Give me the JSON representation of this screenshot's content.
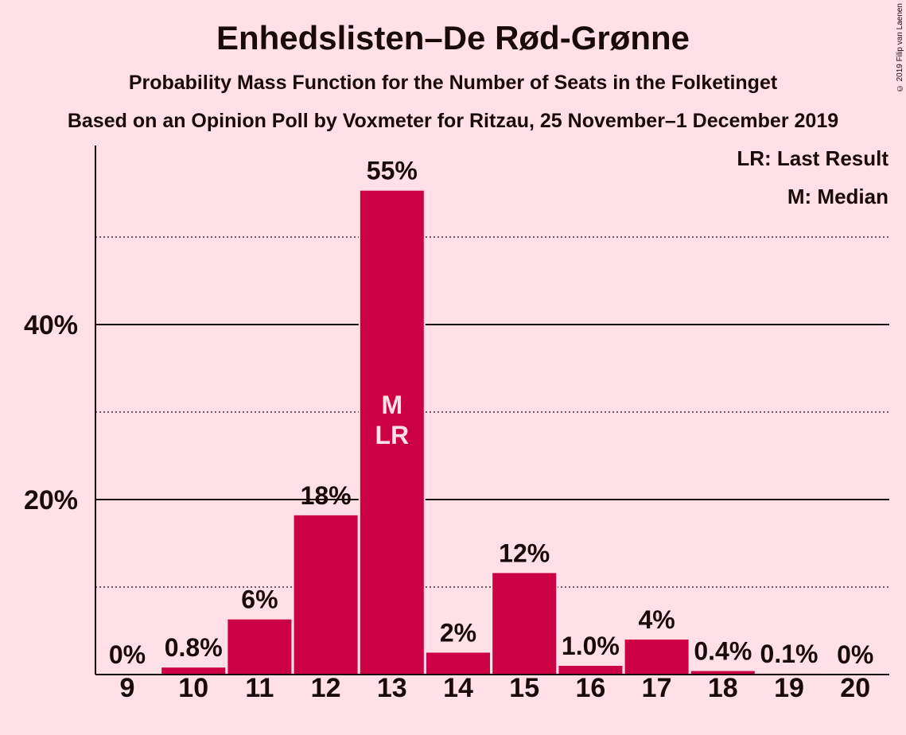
{
  "header": {
    "title": "Enhedslisten–De Rød-Grønne",
    "subtitle": "Probability Mass Function for the Number of Seats in the Folketinget",
    "source": "Based on an Opinion Poll by Voxmeter for Ritzau, 25 November–1 December 2019",
    "copyright": "© 2019 Filip van Laenen"
  },
  "legend": {
    "lr": "LR: Last Result",
    "m": "M: Median"
  },
  "colors": {
    "background": "#ffe0e6",
    "bar": "#cc0044",
    "text": "#1a0a0a"
  },
  "chart_data": {
    "type": "bar",
    "categories": [
      "9",
      "10",
      "11",
      "12",
      "13",
      "14",
      "15",
      "16",
      "17",
      "18",
      "19",
      "20"
    ],
    "values": [
      0,
      0.8,
      6.3,
      18.2,
      55.3,
      2.5,
      11.6,
      1.0,
      4.0,
      0.4,
      0.1,
      0
    ],
    "labels": [
      "0%",
      "0.8%",
      "6%",
      "18%",
      "55%",
      "2%",
      "12%",
      "1.0%",
      "4%",
      "0.4%",
      "0.1%",
      "0%"
    ],
    "yticks": [
      {
        "value": 20,
        "label": "20%"
      },
      {
        "value": 40,
        "label": "40%"
      }
    ],
    "minor_gridlines": [
      10,
      30,
      50
    ],
    "ylim": [
      0,
      60
    ],
    "median_category": "13",
    "last_result_category": "13",
    "median_marker": "M",
    "last_result_marker": "LR",
    "xlabel": "",
    "ylabel": ""
  }
}
